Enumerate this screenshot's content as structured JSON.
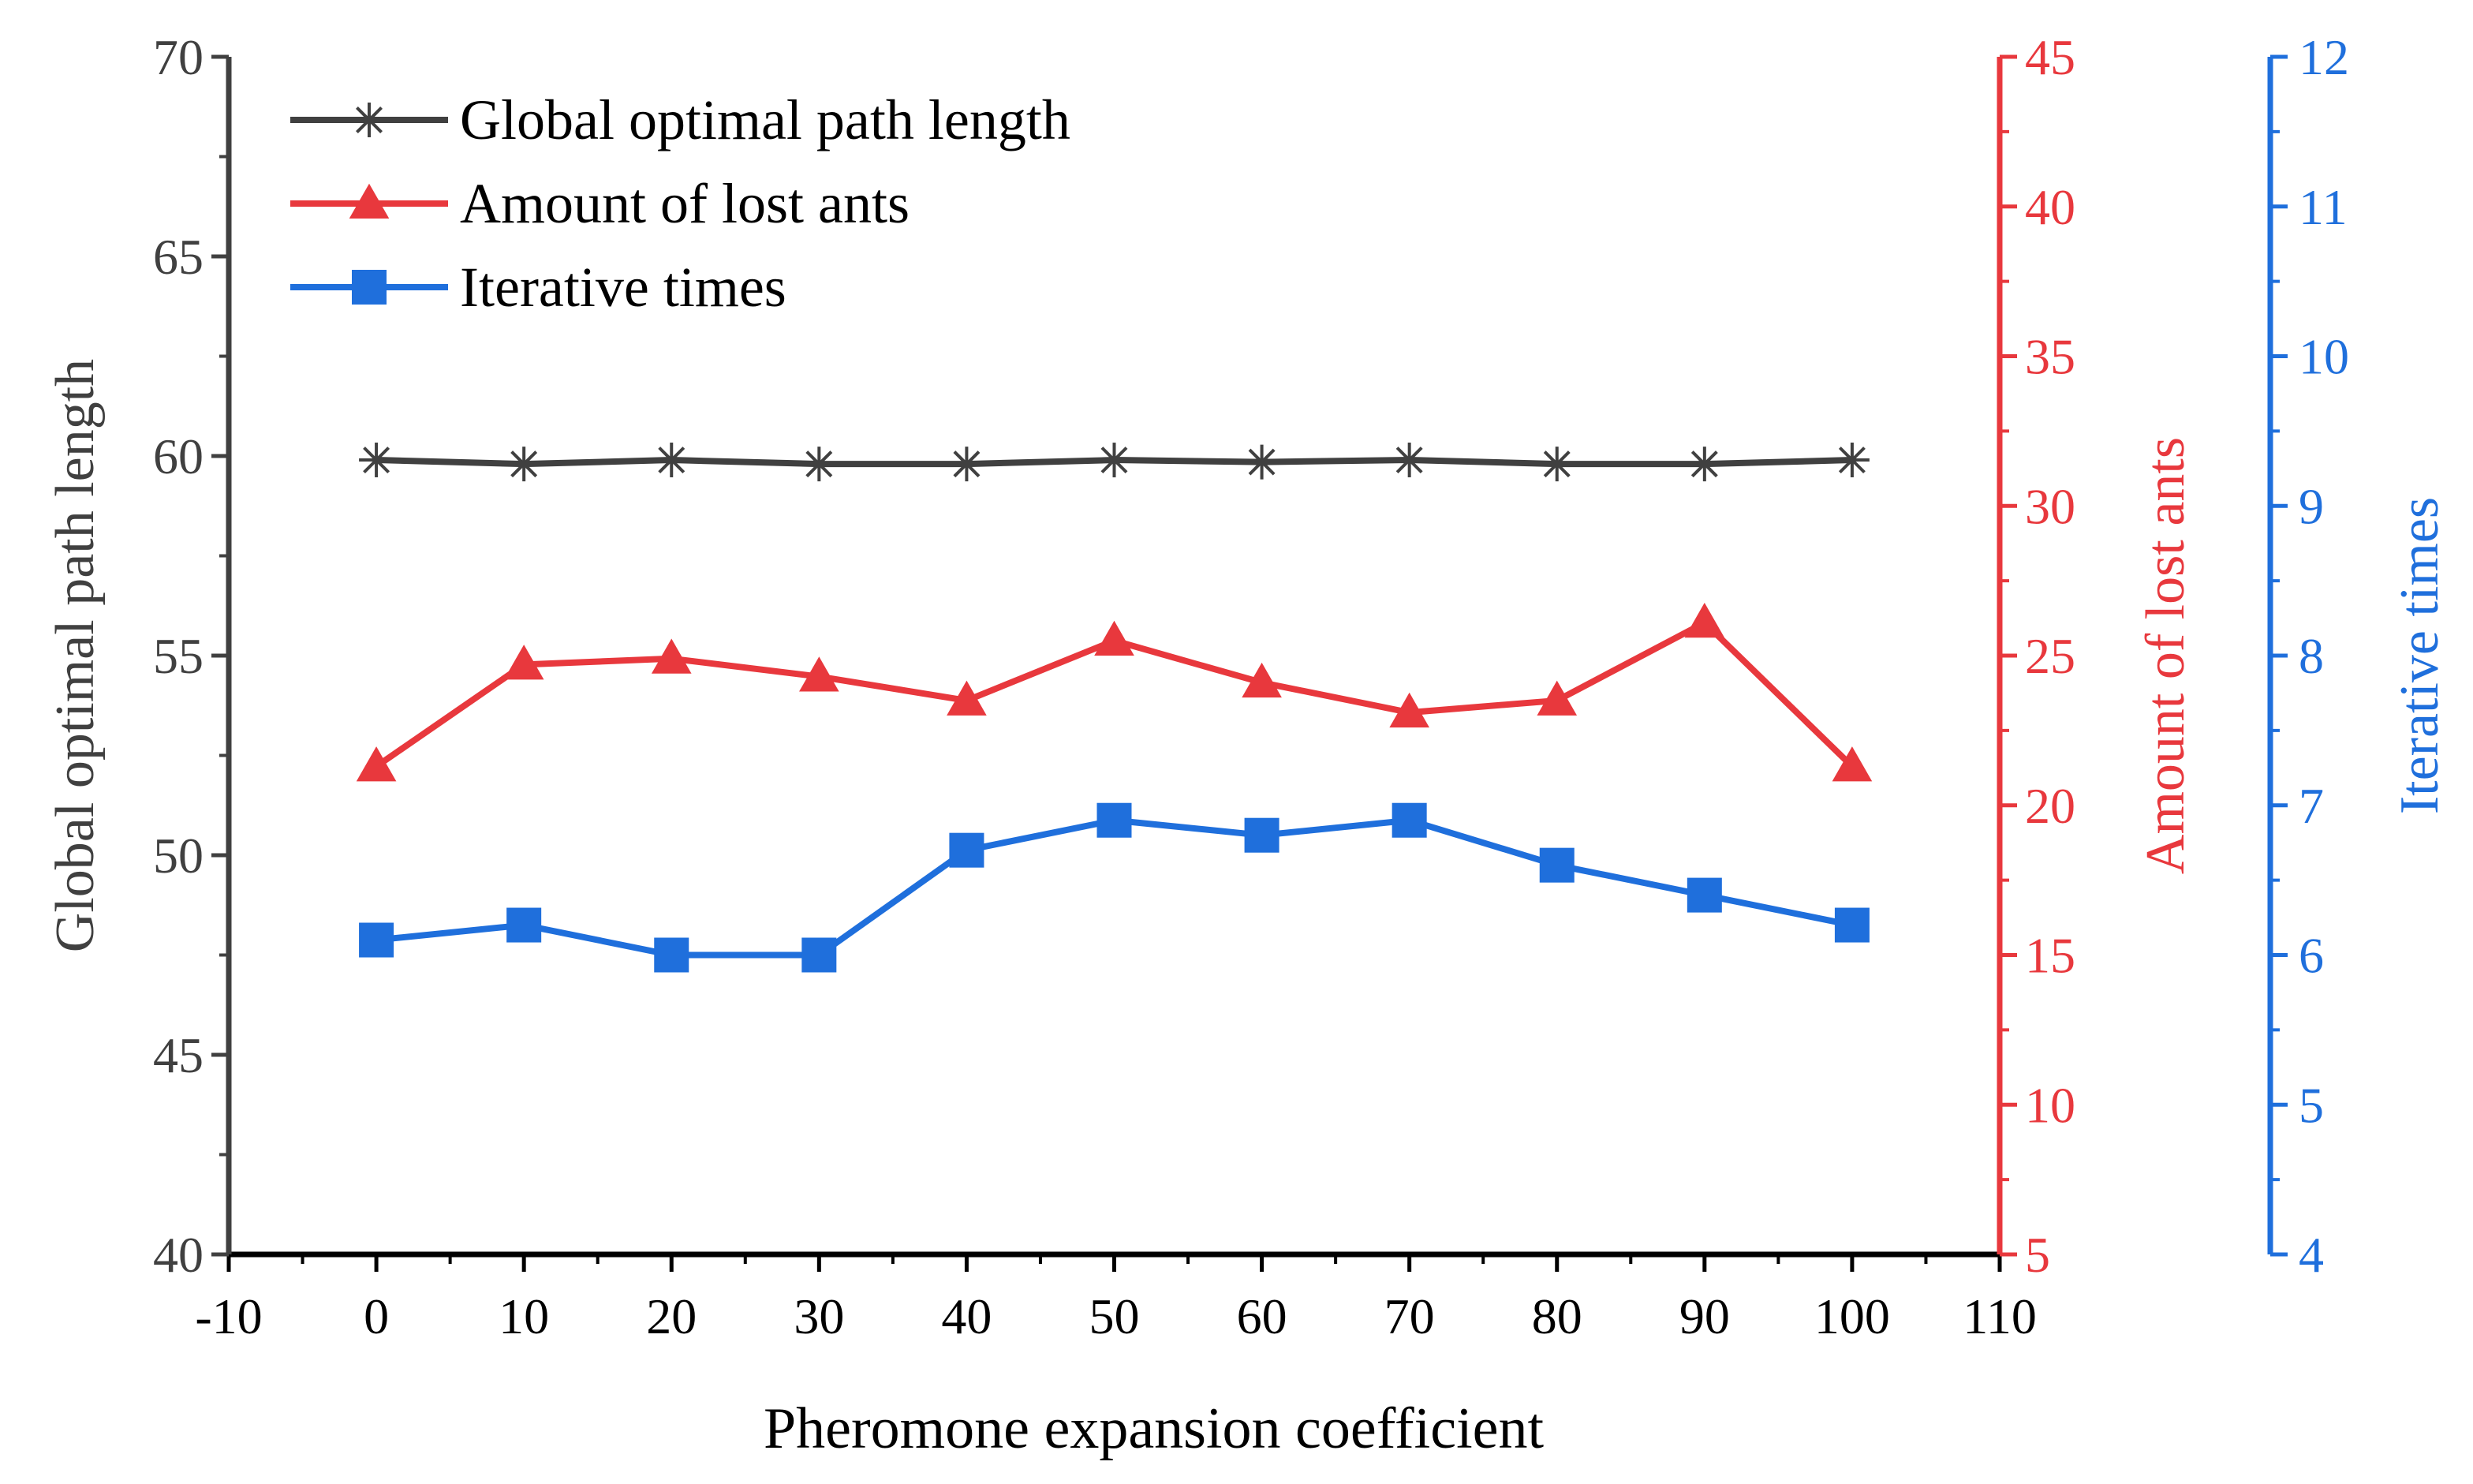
{
  "chart_data": {
    "type": "line",
    "x": [
      0,
      10,
      20,
      30,
      40,
      50,
      60,
      70,
      80,
      90,
      100
    ],
    "xlabel": "Pheromone expansion coefficient",
    "xlim": [
      -10,
      110
    ],
    "xticks": [
      -10,
      0,
      10,
      20,
      30,
      40,
      50,
      60,
      70,
      80,
      90,
      100,
      110
    ],
    "axes": {
      "left": {
        "label": "Global optimal path length",
        "lim": [
          40,
          70
        ],
        "ticks": [
          40,
          45,
          50,
          55,
          60,
          65,
          70
        ],
        "color": "#404040"
      },
      "right": {
        "label": "Amount of lost ants",
        "lim": [
          5,
          45
        ],
        "ticks": [
          5,
          10,
          15,
          20,
          25,
          30,
          35,
          40,
          45
        ],
        "color": "#e8383d"
      },
      "right2": {
        "label": "Iterative times",
        "lim": [
          4,
          12
        ],
        "ticks": [
          4,
          5,
          6,
          7,
          8,
          9,
          10,
          11,
          12
        ],
        "color": "#1f6fdc"
      }
    },
    "series": [
      {
        "name": "Global optimal path length",
        "axis": "left",
        "marker": "asterisk",
        "color": "#404040",
        "values": [
          59.9,
          59.8,
          59.9,
          59.8,
          59.8,
          59.9,
          59.85,
          59.9,
          59.8,
          59.8,
          59.9
        ]
      },
      {
        "name": "Amount of lost ants",
        "axis": "right",
        "marker": "triangle",
        "color": "#e8383d",
        "values": [
          21.3,
          24.7,
          24.9,
          24.3,
          23.5,
          25.5,
          24.1,
          23.1,
          23.5,
          26.1,
          21.3
        ]
      },
      {
        "name": "Iterative times",
        "axis": "right2",
        "marker": "square",
        "color": "#1f6fdc",
        "values": [
          6.1,
          6.2,
          6.0,
          6.0,
          6.7,
          6.9,
          6.8,
          6.9,
          6.6,
          6.4,
          6.2
        ]
      }
    ],
    "legend_position": "top-left",
    "grid": false
  }
}
